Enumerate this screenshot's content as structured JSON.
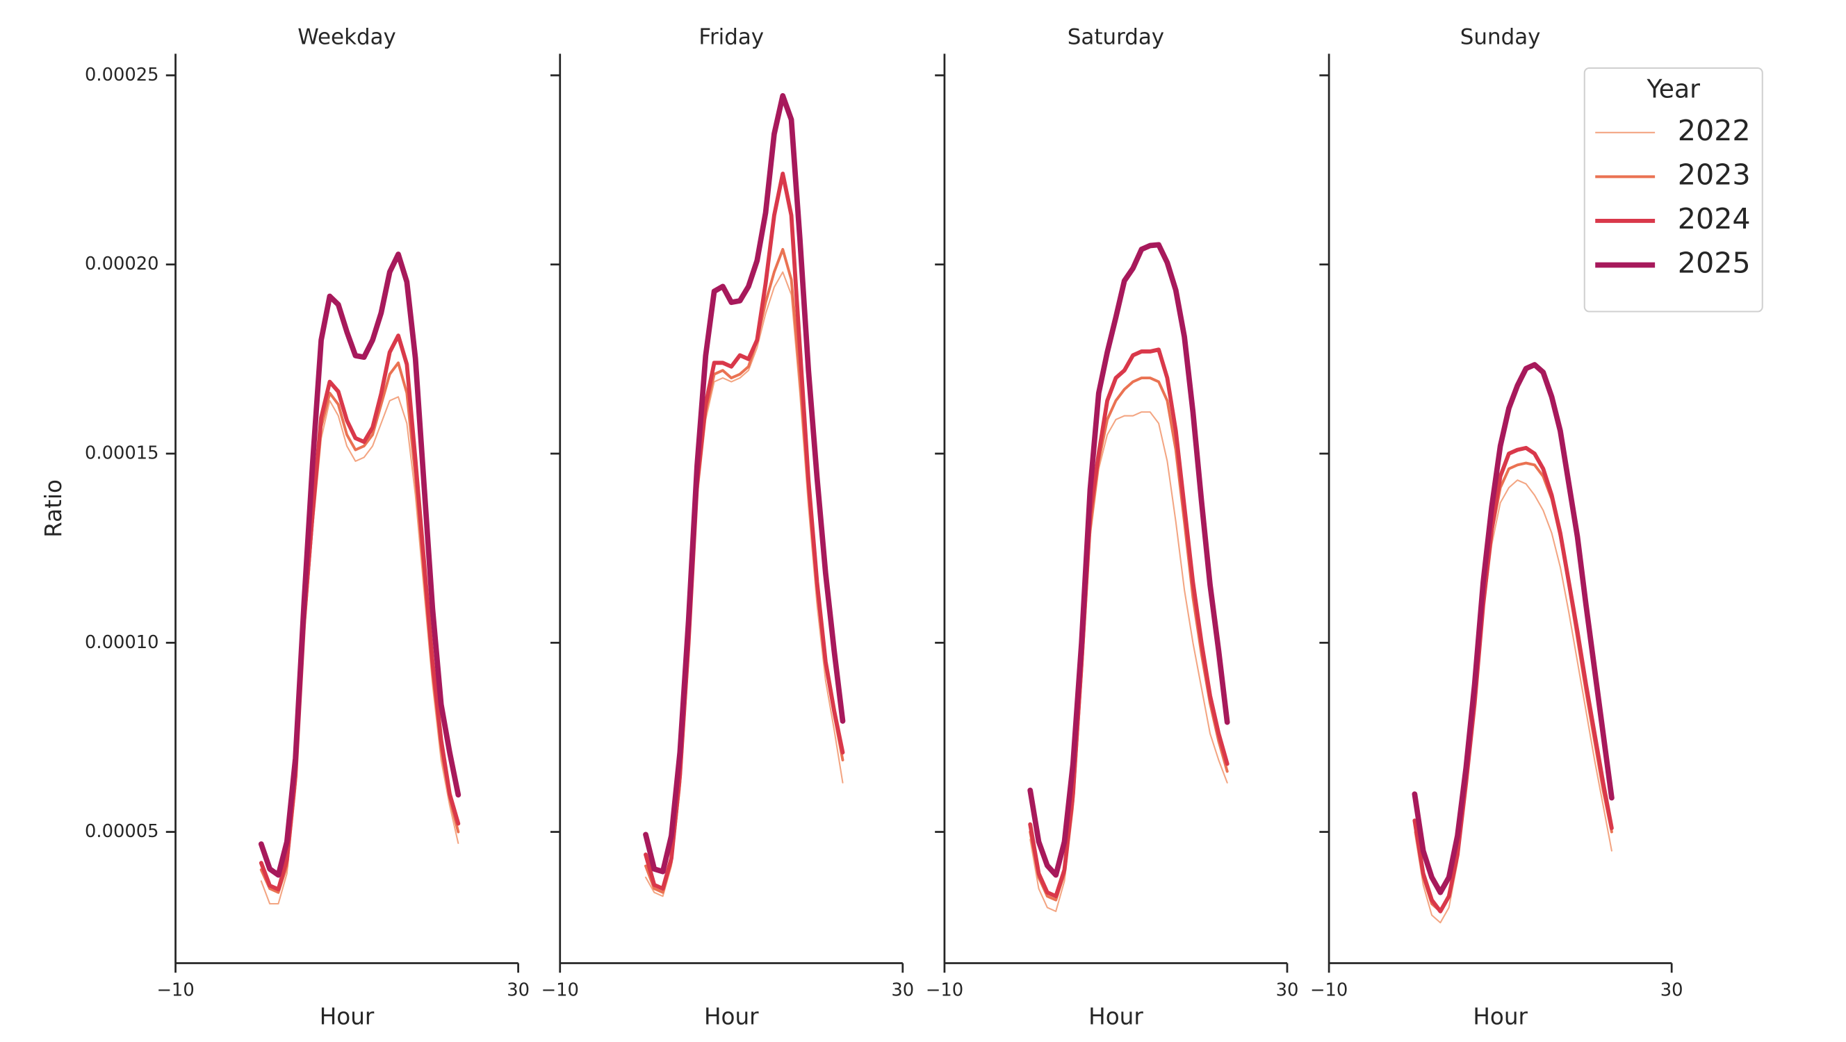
{
  "chart_data": [
    {
      "type": "line",
      "title": "Weekday",
      "xlabel": "Hour",
      "ylabel": "Ratio",
      "x": [
        0,
        1,
        2,
        3,
        4,
        5,
        6,
        7,
        8,
        9,
        10,
        11,
        12,
        13,
        14,
        15,
        16,
        17,
        18,
        19,
        20,
        21,
        22,
        23
      ],
      "xlim": [
        -10,
        30
      ],
      "xticks": [
        {
          "value": -10,
          "label": "−10"
        },
        30
      ],
      "ylim": [
        1.53e-05,
        0.0002557
      ],
      "yticks": [
        {
          "value": 5e-05,
          "label": "0.00005"
        },
        {
          "value": 0.0001,
          "label": "0.00010"
        },
        {
          "value": 0.00015,
          "label": "0.00015"
        },
        {
          "value": 0.0002,
          "label": "0.00020"
        },
        {
          "value": 0.00025,
          "label": "0.00025"
        }
      ],
      "series": [
        {
          "name": "2022",
          "color": "#f3a582",
          "values": [
            3.7e-05,
            3.1e-05,
            3.1e-05,
            3.9e-05,
            6.1e-05,
            0.000101,
            0.00013,
            0.000154,
            0.000164,
            0.00016,
            0.000152,
            0.000148,
            0.000149,
            0.000152,
            0.000158,
            0.000164,
            0.000165,
            0.000158,
            0.000139,
            0.000114,
            8.9e-05,
            6.9e-05,
            5.7e-05,
            4.7e-05
          ]
        },
        {
          "name": "2023",
          "color": "#ea7252",
          "values": [
            4e-05,
            3.5e-05,
            3.4e-05,
            4.1e-05,
            6.3e-05,
            0.000104,
            0.000132,
            0.000157,
            0.000166,
            0.000163,
            0.000155,
            0.000151,
            0.000152,
            0.000155,
            0.000163,
            0.000171,
            0.000174,
            0.000166,
            0.000144,
            0.000118,
            9.2e-05,
            7.2e-05,
            5.9e-05,
            5e-05
          ]
        },
        {
          "name": "2024",
          "color": "#d9384a",
          "values": [
            4.18e-05,
            3.58e-05,
            3.48e-05,
            4.27e-05,
            6.48e-05,
            0.0001058,
            0.0001342,
            0.0001595,
            0.000169,
            0.0001664,
            0.0001588,
            0.0001541,
            0.0001531,
            0.0001569,
            0.0001658,
            0.0001768,
            0.0001812,
            0.0001736,
            0.0001484,
            0.0001216,
            9.48e-05,
            7.43e-05,
            6e-05,
            5.22e-05
          ]
        },
        {
          "name": "2025",
          "color": "#a7195b",
          "values": [
            4.68e-05,
            4.02e-05,
            3.86e-05,
            4.74e-05,
            6.95e-05,
            0.0001106,
            0.0001475,
            0.00018,
            0.0001916,
            0.0001894,
            0.0001822,
            0.0001759,
            0.0001755,
            0.00018,
            0.0001872,
            0.000198,
            0.0002027,
            0.0001954,
            0.0001752,
            0.000142,
            0.000109,
            8.37e-05,
            7.1e-05,
            5.98e-05
          ]
        }
      ]
    },
    {
      "type": "line",
      "title": "Friday",
      "xlabel": "Hour",
      "x": [
        0,
        1,
        2,
        3,
        4,
        5,
        6,
        7,
        8,
        9,
        10,
        11,
        12,
        13,
        14,
        15,
        16,
        17,
        18,
        19,
        20,
        21,
        22,
        23
      ],
      "xlim": [
        -10,
        30
      ],
      "xticks": [
        {
          "value": -10,
          "label": "−10"
        },
        30
      ],
      "ylim": [
        1.53e-05,
        0.0002557
      ],
      "yticks": [
        5e-05,
        0.0001,
        0.00015,
        0.0002,
        0.00025
      ],
      "series": [
        {
          "name": "2022",
          "color": "#f3a582",
          "values": [
            3.8e-05,
            3.4e-05,
            3.3e-05,
            4.1e-05,
            6.1e-05,
            9.6e-05,
            0.000138,
            0.000159,
            0.000169,
            0.00017,
            0.000169,
            0.00017,
            0.000172,
            0.000178,
            0.000187,
            0.000194,
            0.000198,
            0.000192,
            0.000166,
            0.000136,
            0.00011,
            9e-05,
            7.7e-05,
            6.3e-05
          ]
        },
        {
          "name": "2023",
          "color": "#ea7252",
          "values": [
            4.1e-05,
            3.5e-05,
            3.4e-05,
            4.2e-05,
            6.3e-05,
            9.8e-05,
            0.00014,
            0.000161,
            0.000171,
            0.000172,
            0.00017,
            0.000171,
            0.000173,
            0.00018,
            0.00019,
            0.000198,
            0.000204,
            0.000196,
            0.00017,
            0.00014,
            0.000114,
            9.4e-05,
            8.1e-05,
            6.9e-05
          ]
        },
        {
          "name": "2024",
          "color": "#d9384a",
          "values": [
            4.4e-05,
            3.6e-05,
            3.5e-05,
            4.3e-05,
            6.5e-05,
            0.0001,
            0.000142,
            0.000163,
            0.000174,
            0.000174,
            0.000173,
            0.000176,
            0.000175,
            0.00018,
            0.000195,
            0.000213,
            0.000224,
            0.000213,
            0.000178,
            0.000143,
            0.000116,
            9.5e-05,
            8.2e-05,
            7.1e-05
          ]
        },
        {
          "name": "2025",
          "color": "#a7195b",
          "values": [
            4.93e-05,
            4.02e-05,
            3.95e-05,
            4.9e-05,
            7.1e-05,
            0.0001058,
            0.0001468,
            0.0001759,
            0.0001929,
            0.0001942,
            0.00019,
            0.0001904,
            0.0001942,
            0.000201,
            0.0002137,
            0.0002345,
            0.0002446,
            0.0002383,
            0.0002068,
            0.000172,
            0.0001437,
            0.0001184,
            9.79e-05,
            7.93e-05
          ]
        }
      ]
    },
    {
      "type": "line",
      "title": "Saturday",
      "xlabel": "Hour",
      "x": [
        0,
        1,
        2,
        3,
        4,
        5,
        6,
        7,
        8,
        9,
        10,
        11,
        12,
        13,
        14,
        15,
        16,
        17,
        18,
        19,
        20,
        21,
        22,
        23
      ],
      "xlim": [
        -10,
        30
      ],
      "xticks": [
        {
          "value": -10,
          "label": "−10"
        },
        30
      ],
      "ylim": [
        1.53e-05,
        0.0002557
      ],
      "yticks": [
        5e-05,
        0.0001,
        0.00015,
        0.0002,
        0.00025
      ],
      "series": [
        {
          "name": "2022",
          "color": "#f3a582",
          "values": [
            4.8e-05,
            3.5e-05,
            3e-05,
            2.9e-05,
            3.7e-05,
            5.6e-05,
            9e-05,
            0.000128,
            0.000146,
            0.000155,
            0.000159,
            0.00016,
            0.00016,
            0.000161,
            0.000161,
            0.000158,
            0.000148,
            0.000132,
            0.000114,
            0.0001,
            8.8e-05,
            7.6e-05,
            6.9e-05,
            6.3e-05
          ]
        },
        {
          "name": "2023",
          "color": "#ea7252",
          "values": [
            5e-05,
            3.8e-05,
            3.3e-05,
            3.2e-05,
            3.9e-05,
            5.8e-05,
            9.2e-05,
            0.00013,
            0.000148,
            0.000159,
            0.000164,
            0.000167,
            0.000169,
            0.00017,
            0.00017,
            0.000169,
            0.000164,
            0.000151,
            0.000132,
            0.000112,
            9.7e-05,
            8.4e-05,
            7.4e-05,
            6.6e-05
          ]
        },
        {
          "name": "2024",
          "color": "#d9384a",
          "values": [
            5.2e-05,
            3.9e-05,
            3.4e-05,
            3.3e-05,
            4e-05,
            6e-05,
            9.5e-05,
            0.000134,
            0.00015,
            0.000164,
            0.00017,
            0.000172,
            0.000176,
            0.000177,
            0.000177,
            0.0001775,
            0.00017,
            0.000156,
            0.000136,
            0.000116,
            0.0001,
            8.6e-05,
            7.6e-05,
            6.8e-05
          ]
        },
        {
          "name": "2025",
          "color": "#a7195b",
          "values": [
            6.1e-05,
            4.74e-05,
            4.11e-05,
            3.86e-05,
            4.74e-05,
            6.8e-05,
            0.0001,
            0.0001405,
            0.000166,
            0.0001768,
            0.000186,
            0.0001957,
            0.000199,
            0.000204,
            0.000205,
            0.0002052,
            0.0002005,
            0.0001932,
            0.0001809,
            0.000161,
            0.0001374,
            0.0001153,
            9.79e-05,
            7.9e-05
          ]
        }
      ]
    },
    {
      "type": "line",
      "title": "Sunday",
      "xlabel": "Hour",
      "legend_title": "Year",
      "legend": "upper right",
      "x": [
        0,
        1,
        2,
        3,
        4,
        5,
        6,
        7,
        8,
        9,
        10,
        11,
        12,
        13,
        14,
        15,
        16,
        17,
        18,
        19,
        20,
        21,
        22,
        23
      ],
      "xlim": [
        -10,
        30
      ],
      "xticks": [
        {
          "value": -10,
          "label": "−10"
        },
        30
      ],
      "ylim": [
        1.53e-05,
        0.0002557
      ],
      "yticks": [
        5e-05,
        0.0001,
        0.00015,
        0.0002,
        0.00025
      ],
      "series": [
        {
          "name": "2022",
          "color": "#f3a582",
          "values": [
            5e-05,
            3.6e-05,
            2.8e-05,
            2.6e-05,
            3e-05,
            4.2e-05,
            6.1e-05,
            8.2e-05,
            0.000108,
            0.000126,
            0.000137,
            0.000141,
            0.000143,
            0.000142,
            0.000139,
            0.000135,
            0.000129,
            0.00012,
            0.000108,
            9.5e-05,
            8.2e-05,
            6.9e-05,
            5.7e-05,
            4.5e-05
          ]
        },
        {
          "name": "2023",
          "color": "#ea7252",
          "values": [
            5.2e-05,
            3.8e-05,
            3.1e-05,
            2.9e-05,
            3.3e-05,
            4.4e-05,
            6.3e-05,
            8.4e-05,
            0.00011,
            0.000129,
            0.000141,
            0.000146,
            0.000147,
            0.0001475,
            0.000147,
            0.000144,
            0.000138,
            0.000128,
            0.000115,
            0.000101,
            8.7e-05,
            7.4e-05,
            6.1e-05,
            5e-05
          ]
        },
        {
          "name": "2024",
          "color": "#d9384a",
          "values": [
            5.3e-05,
            3.9e-05,
            3.2e-05,
            2.9e-05,
            3.3e-05,
            4.4e-05,
            6.3e-05,
            8.4e-05,
            0.00011,
            0.00013,
            0.000144,
            0.00015,
            0.000151,
            0.0001515,
            0.00015,
            0.000146,
            0.000139,
            0.000129,
            0.000116,
            0.000103,
            8.9e-05,
            7.6e-05,
            6.3e-05,
            5.1e-05
          ]
        },
        {
          "name": "2025",
          "color": "#a7195b",
          "values": [
            6e-05,
            4.5e-05,
            3.8e-05,
            3.4e-05,
            3.8e-05,
            4.9e-05,
            6.7e-05,
            8.9e-05,
            0.000116,
            0.000136,
            0.000152,
            0.000162,
            0.000168,
            0.0001725,
            0.0001735,
            0.0001715,
            0.000165,
            0.000156,
            0.000142,
            0.000128,
            0.00011,
            9.3e-05,
            7.6e-05,
            5.9e-05
          ]
        }
      ]
    }
  ]
}
